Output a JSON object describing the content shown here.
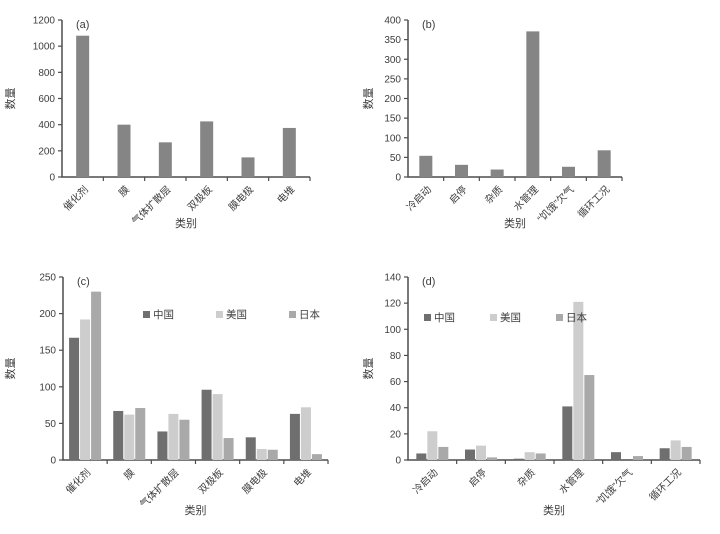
{
  "page": {
    "background": "#ffffff"
  },
  "colors": {
    "axis": "#4d4d4d",
    "text": "#3d3d3d",
    "single_bar": "#858585",
    "series_china": "#6f6f6f",
    "series_usa": "#cdcdcd",
    "series_japan": "#a9a9a9"
  },
  "chart_data": [
    {
      "id": "a",
      "panel_label": "(a)",
      "type": "bar",
      "title": "",
      "xlabel": "类别",
      "ylabel": "数量",
      "categories": [
        "催化剂",
        "膜",
        "气体扩散层",
        "双极板",
        "膜电极",
        "电堆"
      ],
      "values": [
        1080,
        400,
        265,
        425,
        150,
        375
      ],
      "bar_color": "#858585",
      "ylim": [
        0,
        1200
      ],
      "ytick_step": 200,
      "grid": false,
      "legend_position": "none"
    },
    {
      "id": "b",
      "panel_label": "(b)",
      "type": "bar",
      "title": "",
      "xlabel": "类别",
      "ylabel": "数量",
      "categories": [
        "冷启动",
        "启停",
        "杂质",
        "水管理",
        "“饥饿”欠气",
        "循环工况"
      ],
      "values": [
        54,
        31,
        19,
        371,
        26,
        68
      ],
      "bar_color": "#858585",
      "ylim": [
        0,
        400
      ],
      "ytick_step": 50,
      "grid": false,
      "legend_position": "none"
    },
    {
      "id": "c",
      "panel_label": "(c)",
      "type": "bar",
      "title": "",
      "xlabel": "类别",
      "ylabel": "数量",
      "categories": [
        "催化剂",
        "膜",
        "气体扩散层",
        "双极板",
        "膜电极",
        "电堆"
      ],
      "series": [
        {
          "name": "中国",
          "color": "#6f6f6f",
          "values": [
            167,
            67,
            39,
            96,
            31,
            63
          ]
        },
        {
          "name": "美国",
          "color": "#cdcdcd",
          "values": [
            192,
            62,
            63,
            90,
            15,
            72
          ]
        },
        {
          "name": "日本",
          "color": "#a9a9a9",
          "values": [
            230,
            71,
            55,
            30,
            14,
            8
          ]
        }
      ],
      "ylim": [
        0,
        250
      ],
      "ytick_step": 50,
      "grid": false,
      "legend_position": "inside-top"
    },
    {
      "id": "d",
      "panel_label": "(d)",
      "type": "bar",
      "title": "",
      "xlabel": "类别",
      "ylabel": "数量",
      "categories": [
        "冷启动",
        "启停",
        "杂质",
        "水管理",
        "“饥饿”欠气",
        "循环工况"
      ],
      "series": [
        {
          "name": "中国",
          "color": "#6f6f6f",
          "values": [
            5,
            8,
            1,
            41,
            6,
            9
          ]
        },
        {
          "name": "美国",
          "color": "#cdcdcd",
          "values": [
            22,
            11,
            6,
            121,
            0,
            15
          ]
        },
        {
          "name": "日本",
          "color": "#a9a9a9",
          "values": [
            10,
            2,
            5,
            65,
            3,
            10
          ]
        }
      ],
      "ylim": [
        0,
        140
      ],
      "ytick_step": 20,
      "grid": false,
      "legend_position": "inside-top"
    }
  ]
}
